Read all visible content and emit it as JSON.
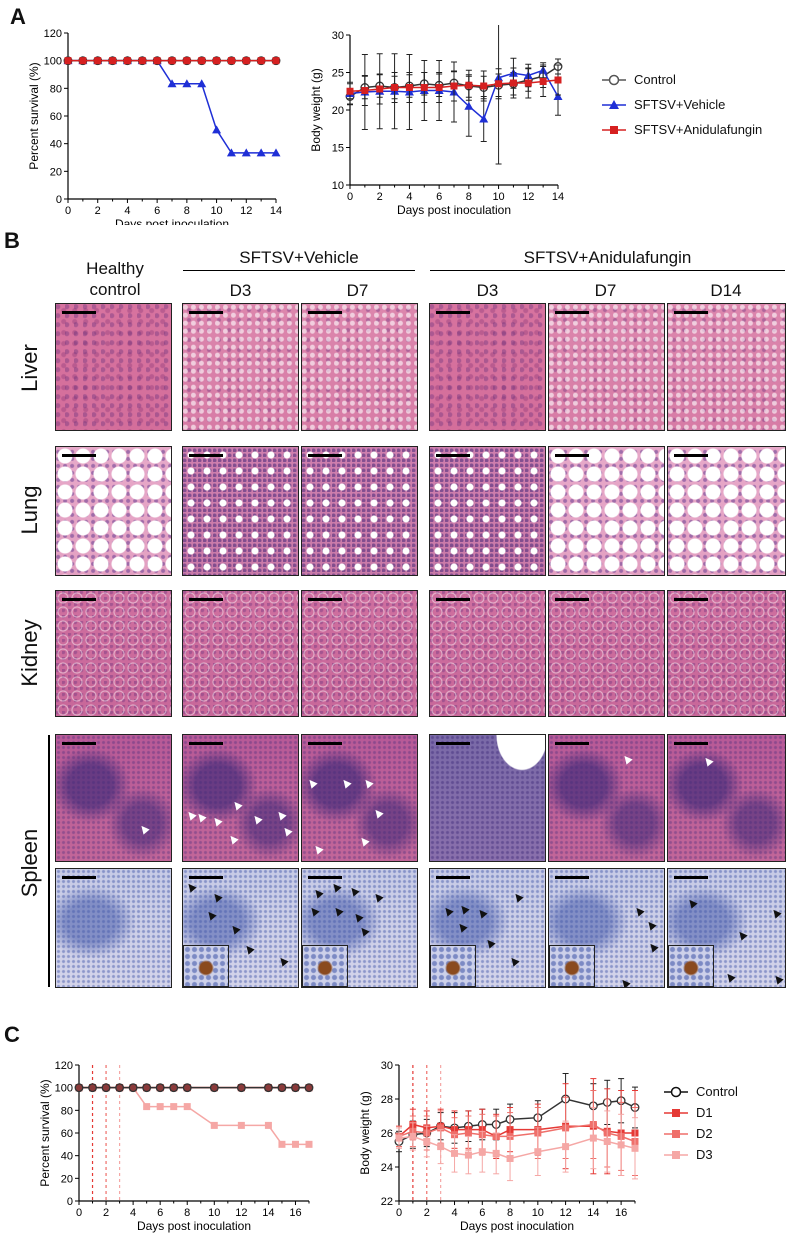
{
  "panels": {
    "A": "A",
    "B": "B",
    "C": "C"
  },
  "panelA": {
    "legend": [
      "Control",
      "SFTSV+Vehicle",
      "SFTSV+Anidulafungin"
    ]
  },
  "panelB": {
    "groups": {
      "vehicle": "SFTSV+Vehicle",
      "anidulafungin": "SFTSV+Anidulafungin"
    },
    "columns": [
      "Healthy\ncontrol",
      "D3",
      "D7",
      "D3",
      "D7",
      "D14"
    ],
    "col_healthy": "Healthy control",
    "rows": [
      "Liver",
      "Lung",
      "Kidney",
      "Spleen"
    ]
  },
  "panelC": {
    "legend": [
      "Control",
      "D1",
      "D2",
      "D3"
    ]
  },
  "colors": {
    "control": "#333333",
    "vehicle": "#1f2fd6",
    "anidulafungin": "#d62020",
    "d1": "#e53935",
    "d2": "#ef6f6a",
    "d3": "#f5a7a5"
  },
  "chart_data": [
    {
      "type": "line",
      "panel": "A-left",
      "xlabel": "Days post inoculation",
      "ylabel": "Percent survival (%)",
      "xlim": [
        0,
        14
      ],
      "ylim": [
        0,
        120
      ],
      "xticks": [
        0,
        2,
        4,
        6,
        8,
        10,
        12,
        14
      ],
      "yticks": [
        0,
        20,
        40,
        60,
        80,
        100,
        120
      ],
      "series": [
        {
          "name": "SFTSV+Vehicle",
          "x": [
            0,
            1,
            2,
            3,
            4,
            5,
            6,
            7,
            8,
            9,
            10,
            11,
            12,
            13,
            14
          ],
          "y": [
            100,
            100,
            100,
            100,
            100,
            100,
            100,
            83.3,
            83.3,
            83.3,
            50,
            33.3,
            33.3,
            33.3,
            33.3
          ]
        },
        {
          "name": "Control",
          "x": [
            0,
            1,
            2,
            3,
            4,
            5,
            6,
            7,
            8,
            9,
            10,
            11,
            12,
            13,
            14
          ],
          "y": [
            100,
            100,
            100,
            100,
            100,
            100,
            100,
            100,
            100,
            100,
            100,
            100,
            100,
            100,
            100
          ]
        },
        {
          "name": "SFTSV+Anidulafungin",
          "x": [
            0,
            1,
            2,
            3,
            4,
            5,
            6,
            7,
            8,
            9,
            10,
            11,
            12,
            13,
            14
          ],
          "y": [
            100,
            100,
            100,
            100,
            100,
            100,
            100,
            100,
            100,
            100,
            100,
            100,
            100,
            100,
            100
          ]
        }
      ]
    },
    {
      "type": "line",
      "panel": "A-right",
      "xlabel": "Days post inoculation",
      "ylabel": "Body weight (g)",
      "xlim": [
        0,
        14
      ],
      "ylim": [
        10,
        30
      ],
      "xticks": [
        0,
        2,
        4,
        6,
        8,
        10,
        12,
        14
      ],
      "yticks": [
        10,
        15,
        20,
        25,
        30
      ],
      "series": [
        {
          "name": "Control",
          "x": [
            0,
            1,
            2,
            3,
            4,
            5,
            6,
            7,
            8,
            9,
            10,
            11,
            12,
            13,
            14
          ],
          "y": [
            21.8,
            23,
            23.2,
            23,
            23.2,
            23.5,
            23.3,
            23.6,
            23.2,
            23.0,
            23.3,
            23.5,
            24,
            24.5,
            25.8
          ],
          "err": [
            1,
            1.5,
            1.5,
            1.5,
            1.5,
            1.5,
            1.5,
            1.5,
            1.5,
            1.5,
            1.5,
            1.5,
            1.5,
            1.5,
            1
          ]
        },
        {
          "name": "SFTSV+Vehicle",
          "x": [
            0,
            1,
            2,
            3,
            4,
            5,
            6,
            7,
            8,
            9,
            10,
            11,
            12,
            13,
            14
          ],
          "y": [
            22.2,
            22.4,
            22.5,
            22.5,
            22.4,
            22.6,
            22.6,
            22.4,
            20.5,
            18.8,
            24.3,
            24.9,
            24.6,
            25.3,
            21.8
          ],
          "err": [
            1.5,
            5,
            5,
            5,
            5,
            4,
            4,
            4,
            4,
            3,
            11.5,
            2,
            1.5,
            1,
            2.5
          ]
        },
        {
          "name": "SFTSV+Anidulafungin",
          "x": [
            0,
            1,
            2,
            3,
            4,
            5,
            6,
            7,
            8,
            9,
            10,
            11,
            12,
            13,
            14
          ],
          "y": [
            22.5,
            22.6,
            22.8,
            23,
            23,
            23,
            23,
            23.2,
            23.3,
            23.2,
            23.5,
            23.6,
            23.6,
            23.8,
            24
          ],
          "err": [
            1,
            2,
            2,
            2,
            2,
            2,
            2,
            2,
            2,
            2,
            2,
            2,
            2,
            2,
            2
          ]
        }
      ]
    },
    {
      "type": "line",
      "panel": "C-left",
      "xlabel": "Days post inoculation",
      "ylabel": "Percent survival (%)",
      "xlim": [
        0,
        17
      ],
      "ylim": [
        0,
        120
      ],
      "xticks": [
        0,
        2,
        4,
        6,
        8,
        10,
        12,
        14,
        16
      ],
      "yticks": [
        0,
        20,
        40,
        60,
        80,
        100,
        120
      ],
      "vlines": [
        1,
        2,
        3
      ],
      "series": [
        {
          "name": "D3",
          "x": [
            0,
            1,
            2,
            3,
            4,
            5,
            6,
            7,
            8,
            10,
            12,
            14,
            15,
            16,
            17
          ],
          "y": [
            100,
            100,
            100,
            100,
            100,
            83.3,
            83.3,
            83.3,
            83.3,
            66.7,
            66.7,
            66.7,
            50,
            50,
            50
          ]
        },
        {
          "name": "D2",
          "x": [
            0,
            1,
            2,
            3,
            4,
            5,
            6,
            7,
            8,
            10,
            12,
            14,
            15,
            16,
            17
          ],
          "y": [
            100,
            100,
            100,
            100,
            100,
            100,
            100,
            100,
            100,
            100,
            100,
            100,
            100,
            100,
            100
          ]
        },
        {
          "name": "D1",
          "x": [
            0,
            1,
            2,
            3,
            4,
            5,
            6,
            7,
            8,
            10,
            12,
            14,
            15,
            16,
            17
          ],
          "y": [
            100,
            100,
            100,
            100,
            100,
            100,
            100,
            100,
            100,
            100,
            100,
            100,
            100,
            100,
            100
          ]
        },
        {
          "name": "Control",
          "x": [
            0,
            1,
            2,
            3,
            4,
            5,
            6,
            7,
            8,
            10,
            12,
            14,
            15,
            16,
            17
          ],
          "y": [
            100,
            100,
            100,
            100,
            100,
            100,
            100,
            100,
            100,
            100,
            100,
            100,
            100,
            100,
            100
          ]
        }
      ]
    },
    {
      "type": "line",
      "panel": "C-right",
      "xlabel": "Days post inoculation",
      "ylabel": "Body weight (g)",
      "xlim": [
        0,
        17
      ],
      "ylim": [
        22,
        30
      ],
      "xticks": [
        0,
        2,
        4,
        6,
        8,
        10,
        12,
        14,
        16
      ],
      "yticks": [
        22,
        24,
        26,
        28,
        30
      ],
      "vlines": [
        1,
        2,
        3
      ],
      "series": [
        {
          "name": "Control",
          "x": [
            0,
            1,
            2,
            3,
            4,
            5,
            6,
            7,
            8,
            10,
            12,
            14,
            15,
            16,
            17
          ],
          "y": [
            25.5,
            25.9,
            26.0,
            26.4,
            26.3,
            26.4,
            26.5,
            26.5,
            26.8,
            26.9,
            28.0,
            27.6,
            27.8,
            27.9,
            27.5
          ],
          "err": [
            0.6,
            0.8,
            0.8,
            0.8,
            0.9,
            0.9,
            0.9,
            0.9,
            0.9,
            1,
            1.5,
            1.3,
            1.3,
            1.3,
            1.2
          ]
        },
        {
          "name": "D1",
          "x": [
            0,
            1,
            2,
            3,
            4,
            5,
            6,
            7,
            8,
            10,
            12,
            14,
            15,
            16,
            17
          ],
          "y": [
            25.8,
            26.5,
            26.3,
            26.4,
            26.2,
            26.2,
            26.2,
            25.8,
            26.2,
            26.2,
            26.4,
            26.4,
            26.1,
            26.0,
            26.0
          ],
          "err": [
            0.6,
            0.9,
            1,
            1,
            1.1,
            1.1,
            1.2,
            1.3,
            1.3,
            1.5,
            2.5,
            2.8,
            2.5,
            2.5,
            2.5
          ]
        },
        {
          "name": "D2",
          "x": [
            0,
            1,
            2,
            3,
            4,
            5,
            6,
            7,
            8,
            10,
            12,
            14,
            15,
            16,
            17
          ],
          "y": [
            25.8,
            26.1,
            26.0,
            26.3,
            25.9,
            26.0,
            25.9,
            25.8,
            25.8,
            26.0,
            26.3,
            26.5,
            26.0,
            25.8,
            25.5
          ],
          "err": [
            0.6,
            0.9,
            1,
            1,
            1,
            1,
            1.2,
            1.2,
            1.4,
            1.5,
            1.8,
            2,
            2,
            2,
            2
          ]
        },
        {
          "name": "D3",
          "x": [
            0,
            1,
            2,
            3,
            4,
            5,
            6,
            7,
            8,
            10,
            12,
            14,
            15,
            16,
            17
          ],
          "y": [
            25.7,
            25.8,
            25.5,
            25.2,
            24.8,
            24.7,
            24.9,
            24.8,
            24.5,
            24.9,
            25.2,
            25.7,
            25.5,
            25.3,
            25.1
          ],
          "err": [
            0.6,
            0.8,
            0.9,
            1,
            1.1,
            1.1,
            1.2,
            1.2,
            1.3,
            1.4,
            1.5,
            1.8,
            1.8,
            1.8,
            1.8
          ]
        }
      ]
    }
  ]
}
